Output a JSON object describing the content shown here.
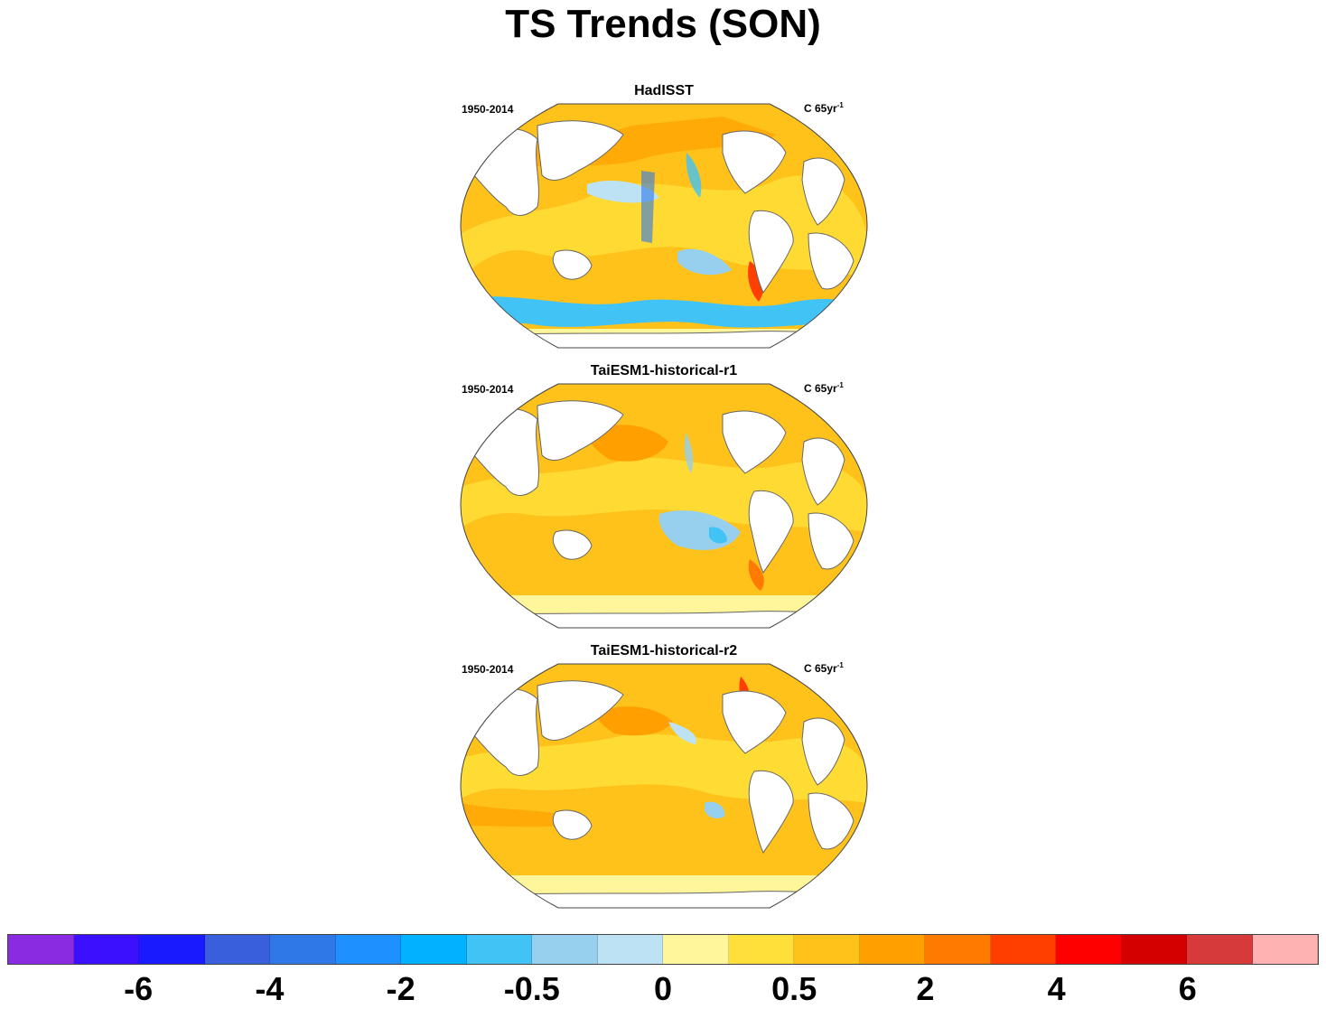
{
  "title": "TS Trends (SON)",
  "panels": [
    {
      "title": "HadISST",
      "left_text": "1950-2014",
      "unit": "C 65yr",
      "unit_sup": "-1"
    },
    {
      "title": "TaiESM1-historical-r1",
      "left_text": "1950-2014",
      "unit": "C 65yr",
      "unit_sup": "-1"
    },
    {
      "title": "TaiESM1-historical-r2",
      "left_text": "1950-2014",
      "unit": "C 65yr",
      "unit_sup": "-1"
    }
  ],
  "colorbar": {
    "colors": [
      "#8a2be2",
      "#3a10ff",
      "#1a1aff",
      "#3a5fdd",
      "#2f78e8",
      "#1e90ff",
      "#00b2ff",
      "#41c3f5",
      "#96d0ee",
      "#bde2f3",
      "#fff59a",
      "#ffe03a",
      "#ffc21a",
      "#ffa000",
      "#ff7a00",
      "#ff3f00",
      "#ff0000",
      "#d40000",
      "#d63a3a",
      "#ffb2b2"
    ],
    "labels": [
      {
        "text": "-6",
        "boundary": 2
      },
      {
        "text": "-4",
        "boundary": 4
      },
      {
        "text": "-2",
        "boundary": 6
      },
      {
        "text": "-0.5",
        "boundary": 8
      },
      {
        "text": "0",
        "boundary": 10
      },
      {
        "text": "0.5",
        "boundary": 12
      },
      {
        "text": "2",
        "boundary": 14
      },
      {
        "text": "4",
        "boundary": 16
      },
      {
        "text": "6",
        "boundary": 18
      }
    ]
  }
}
